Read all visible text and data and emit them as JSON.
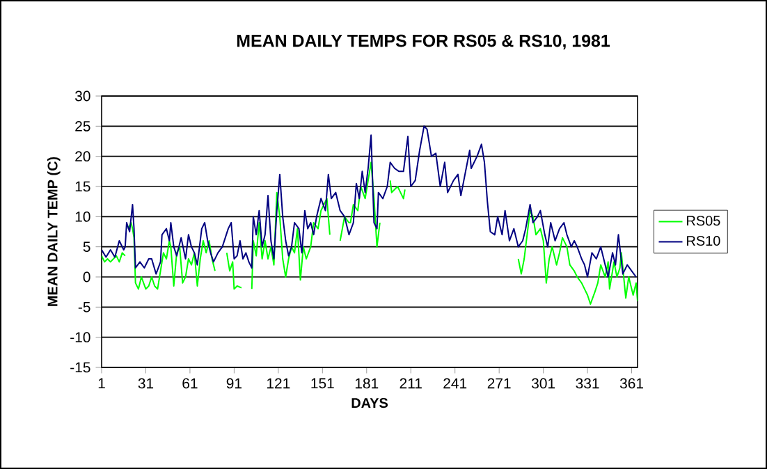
{
  "chart_data": {
    "type": "line",
    "title": "MEAN DAILY TEMPS FOR RS05 & RS10, 1981",
    "xlabel": "DAYS",
    "ylabel": "MEAN DAILY TEMP (C)",
    "xlim": [
      1,
      365
    ],
    "xticks": [
      1,
      31,
      61,
      91,
      121,
      151,
      181,
      211,
      241,
      271,
      301,
      331,
      361
    ],
    "ylim": [
      -15,
      30
    ],
    "yticks": [
      -15,
      -10,
      -5,
      0,
      5,
      10,
      15,
      20,
      25,
      30
    ],
    "grid": "y",
    "legend": "right",
    "marker": "none",
    "line_style": "solid",
    "series": [
      {
        "name": "RS05",
        "color": "#00ff00",
        "x": [
          1,
          3,
          5,
          7,
          9,
          11,
          13,
          15,
          17,
          18,
          19,
          21,
          22,
          23,
          24,
          26,
          28,
          31,
          33,
          35,
          37,
          39,
          41,
          43,
          45,
          47,
          48,
          50,
          52,
          54,
          56,
          58,
          60,
          62,
          64,
          66,
          68,
          70,
          72,
          74,
          76,
          78,
          82,
          86,
          88,
          90,
          91,
          93,
          96,
          100,
          103,
          104,
          106,
          108,
          110,
          112,
          114,
          116,
          118,
          120,
          122,
          124,
          126,
          128,
          130,
          132,
          134,
          136,
          138,
          140,
          143,
          145,
          148,
          150,
          152,
          154,
          156,
          160,
          163,
          166,
          169,
          170,
          172,
          175,
          177,
          180,
          182,
          184,
          186,
          188,
          190,
          194,
          197,
          198,
          202,
          204,
          206,
          207,
          240,
          284,
          286,
          288,
          292,
          294,
          296,
          299,
          301,
          303,
          305,
          307,
          310,
          312,
          314,
          317,
          319,
          322,
          324,
          327,
          329,
          331,
          333,
          336,
          338,
          340,
          343,
          345,
          346,
          349,
          351,
          353,
          354,
          357,
          359,
          362,
          364,
          365
        ],
        "values": [
          3.5,
          2.5,
          3,
          2.5,
          3,
          3.5,
          2.5,
          4,
          3.5,
          null,
          8,
          9,
          8,
          6.5,
          -1,
          -2,
          0,
          -2,
          -1.5,
          0,
          -1.5,
          -2,
          1,
          4,
          3,
          6,
          5,
          -1.5,
          4,
          5,
          -1,
          0,
          3,
          2,
          4,
          -1.5,
          3,
          6,
          4,
          6,
          3,
          1,
          null,
          4,
          1,
          2.5,
          -2,
          -1.5,
          -1.8,
          null,
          -2,
          6,
          3.5,
          9,
          3,
          6,
          3,
          5,
          2,
          14,
          10,
          3,
          0,
          3,
          5,
          4,
          8,
          -0.5,
          5,
          3,
          5,
          9,
          8,
          11,
          12,
          13,
          7,
          null,
          6,
          10,
          9,
          9,
          12,
          11,
          15,
          13,
          16,
          19,
          13,
          5,
          9,
          null,
          16,
          14,
          15,
          14,
          13,
          14.5,
          null,
          3,
          0.5,
          3,
          11,
          10,
          7,
          8,
          6,
          -1,
          3,
          5,
          2,
          4,
          6.5,
          5,
          2,
          1,
          0,
          -1,
          -2,
          -3,
          -4.5,
          -2.5,
          -1,
          2,
          0,
          2.5,
          -2,
          2.5,
          0,
          1.5,
          4,
          -3.5,
          0,
          -3,
          -1,
          -4
        ]
      },
      {
        "name": "RS10",
        "color": "#000080",
        "x": [
          1,
          4,
          7,
          10,
          13,
          16,
          17,
          18,
          20,
          22,
          23,
          24,
          27,
          30,
          33,
          35,
          38,
          41,
          42,
          45,
          47,
          48,
          50,
          52,
          55,
          58,
          60,
          62,
          64,
          66,
          69,
          71,
          73,
          75,
          77,
          80,
          83,
          85,
          87,
          89,
          91,
          93,
          95,
          97,
          99,
          101,
          103,
          104,
          106,
          108,
          110,
          112,
          114,
          116,
          118,
          120,
          122,
          124,
          126,
          128,
          130,
          132,
          135,
          137,
          139,
          141,
          143,
          145,
          147,
          150,
          153,
          155,
          157,
          160,
          163,
          166,
          169,
          172,
          174,
          176,
          178,
          180,
          182,
          184,
          186,
          188,
          189,
          192,
          195,
          197,
          200,
          203,
          206,
          209,
          211,
          214,
          217,
          220,
          222,
          225,
          228,
          231,
          234,
          236,
          240,
          243,
          245,
          247,
          251,
          252,
          256,
          259,
          261,
          263,
          265,
          268,
          270,
          273,
          275,
          278,
          281,
          284,
          287,
          289,
          292,
          294,
          297,
          299,
          302,
          304,
          306,
          309,
          312,
          315,
          317,
          320,
          322,
          324,
          327,
          329,
          331,
          334,
          337,
          340,
          342,
          345,
          348,
          350,
          352,
          355,
          358,
          361,
          364
        ],
        "values": [
          4.5,
          3.3,
          4.5,
          3.3,
          6,
          4.5,
          5,
          9,
          7.5,
          12,
          8,
          1.5,
          2.5,
          1.5,
          3,
          3,
          0.5,
          2.5,
          7,
          8,
          6,
          9,
          5,
          3.5,
          6.5,
          3,
          7,
          5,
          4,
          2,
          8,
          9,
          6,
          4,
          2.5,
          4,
          5,
          6.5,
          8,
          9,
          3,
          3.5,
          6,
          3,
          4,
          2.5,
          1.5,
          10,
          7,
          11,
          5,
          7,
          13.5,
          6,
          3,
          11,
          17,
          10,
          6,
          3.5,
          5,
          9,
          8,
          4,
          11,
          8,
          9,
          7,
          10,
          13,
          11,
          17,
          13,
          14,
          11,
          10,
          7,
          9,
          15.5,
          13,
          17.5,
          14,
          18,
          23.5,
          9,
          8,
          14,
          13,
          15,
          19,
          18,
          17.5,
          17.5,
          23.3,
          15,
          16,
          21,
          25,
          24.5,
          20,
          20.5,
          15,
          19,
          14,
          16,
          17,
          13.5,
          16,
          21,
          18,
          20,
          22,
          19,
          12.5,
          7.5,
          7,
          10,
          7,
          11,
          6,
          8,
          5,
          6,
          8,
          12,
          9,
          10,
          11,
          7,
          5,
          9,
          6,
          8,
          9,
          7,
          5,
          6,
          5,
          3,
          2,
          0,
          4,
          3,
          5,
          3,
          0,
          4,
          2,
          7,
          0.5,
          2,
          1,
          0
        ]
      }
    ]
  }
}
